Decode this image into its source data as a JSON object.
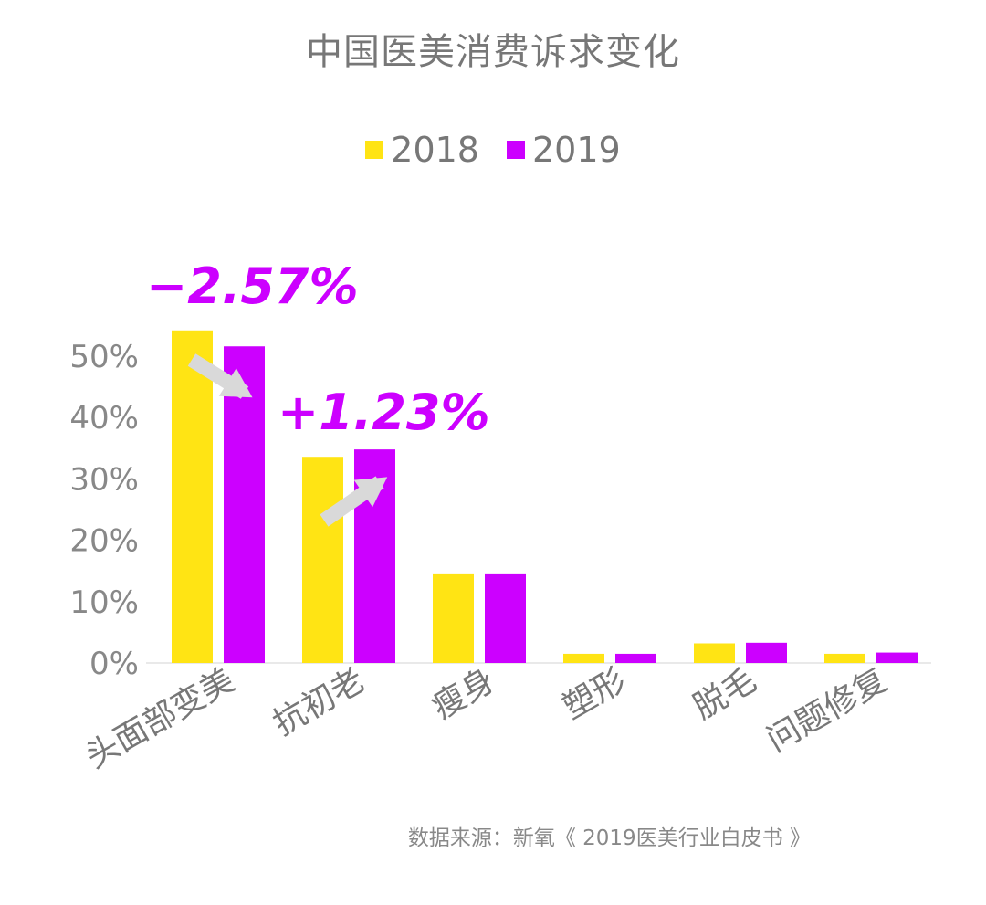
{
  "title": "中国医美消费诉求变化",
  "source": "数据来源：新氧《 2019医美行业白皮书 》",
  "chart_data": {
    "type": "bar",
    "title": "中国医美消费诉求变化",
    "categories": [
      "头面部变美",
      "抗初老",
      "瘦身",
      "塑形",
      "脱毛",
      "问题修复"
    ],
    "series": [
      {
        "name": "2018",
        "color": "#ffe414",
        "values": [
          54.2,
          33.6,
          14.6,
          1.5,
          3.2,
          1.5
        ]
      },
      {
        "name": "2019",
        "color": "#cc00ff",
        "values": [
          51.6,
          34.8,
          14.6,
          1.5,
          3.3,
          1.7
        ]
      }
    ],
    "y_ticks": [
      "0%",
      "10%",
      "20%",
      "30%",
      "40%",
      "50%"
    ],
    "ylim": [
      0,
      60
    ],
    "legend_position": "top-center",
    "grid": false,
    "annotations": [
      {
        "text": "−2.57%",
        "category": "头面部变美",
        "direction": "down"
      },
      {
        "text": "+1.23%",
        "category": "抗初老",
        "direction": "up"
      }
    ]
  }
}
